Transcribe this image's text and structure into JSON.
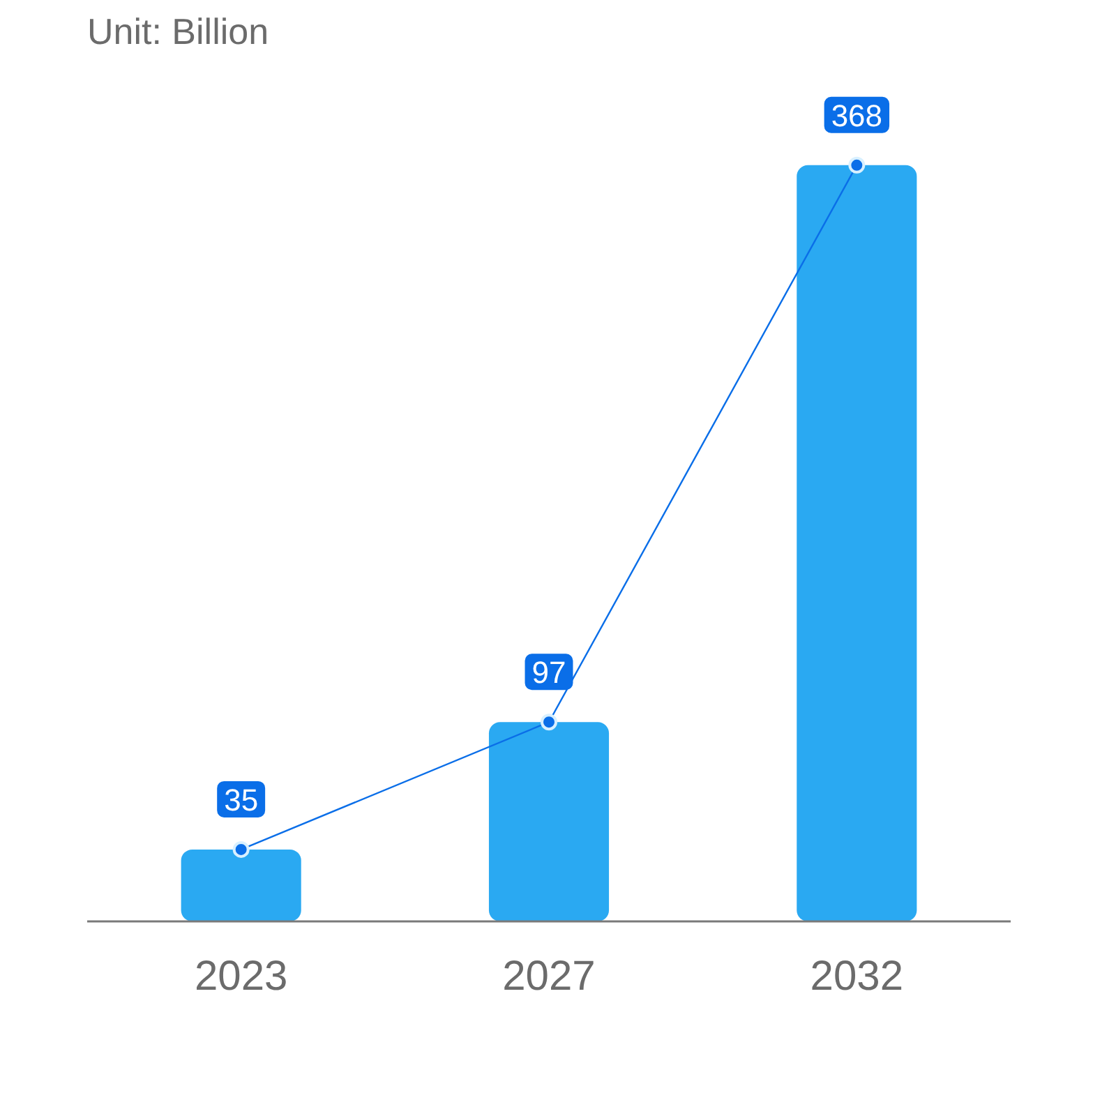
{
  "chart_data": {
    "type": "bar",
    "title": "Unit: Billion",
    "categories": [
      "2023",
      "2027",
      "2032"
    ],
    "series": [
      {
        "color": "#2aa9f2",
        "values": [
          35,
          97,
          368
        ]
      },
      {
        "type": "line",
        "color": "#0a6ee8",
        "values": [
          35,
          97,
          368
        ],
        "marker": "circle",
        "value_labels": [
          "35",
          "97",
          "368"
        ]
      }
    ],
    "tick_labels": "x"
  }
}
